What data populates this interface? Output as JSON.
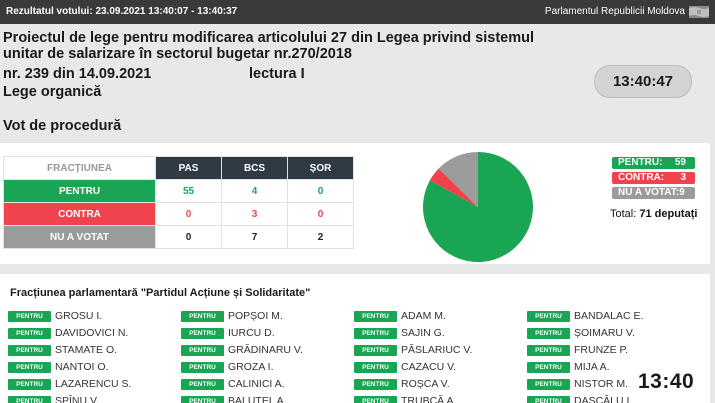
{
  "header": {
    "results_label": "Rezultatul votului: 23.09.2021 13:40:07 - 13:40:37",
    "institution": "Parlamentul Republicii Moldova",
    "flag_icon": "moldova-flag-icon"
  },
  "bill": {
    "title": "Proiectul de lege pentru modificarea articolului 27 din Legea privind sistemul unitar de salarizare în sectorul bugetar nr.270/2018",
    "number": "nr. 239 din 14.09.2021",
    "reading": "lectura I",
    "law_type": "Lege organică"
  },
  "clock": "13:40:47",
  "vote_section_title": "Vot de procedură",
  "vote_table": {
    "columns": [
      "FRACȚIUNEA",
      "PAS",
      "BCS",
      "ȘOR"
    ],
    "rows": [
      {
        "label": "PENTRU",
        "values": [
          "55",
          "4",
          "0"
        ]
      },
      {
        "label": "CONTRA",
        "values": [
          "0",
          "3",
          "0"
        ]
      },
      {
        "label": "NU A VOTAT",
        "values": [
          "0",
          "7",
          "2"
        ]
      }
    ]
  },
  "colors": {
    "pentru": "#19a553",
    "contra": "#f0434e",
    "nu_a_votat": "#9b9b9b",
    "header": "#2f3a45"
  },
  "chart_data": {
    "type": "pie",
    "labels": [
      "PENTRU",
      "CONTRA",
      "NU A VOTAT"
    ],
    "values": [
      59,
      3,
      9
    ],
    "colors": [
      "#19a553",
      "#f0434e",
      "#9b9b9b"
    ]
  },
  "legend": {
    "pentru_label": "PENTRU:",
    "pentru_value": "59",
    "contra_label": "CONTRA:",
    "contra_value": "3",
    "nuvot_label": "NU A VOTAT:",
    "nuvot_value": "9",
    "total_label": "Total:",
    "total_value": "71 deputați"
  },
  "faction_title": "Fracțiunea parlamentară \"Partidul Acțiune și Solidaritate\"",
  "vote_badge": "PENTRU",
  "deputies": [
    [
      "GROSU I.",
      "POPȘOI M.",
      "ADAM M.",
      "BANDALAC E."
    ],
    [
      "DAVIDOVICI N.",
      "IURCU D.",
      "SAJIN G.",
      "ȘOIMARU V."
    ],
    [
      "STAMATE O.",
      "GRĂDINARU V.",
      "PĂSLARIUC V.",
      "FRUNZE P."
    ],
    [
      "NANTOI O.",
      "GROZA I.",
      "CAZACU V.",
      "MIJA A."
    ],
    [
      "LAZARENCU S.",
      "CALINICI A.",
      "ROȘCA V.",
      "NISTOR M."
    ],
    [
      "SPÎNU V.",
      "BALUȚEL A.",
      "TRUBCĂ A.",
      "DASCĂLU I."
    ]
  ],
  "overlay_time": "13:40"
}
